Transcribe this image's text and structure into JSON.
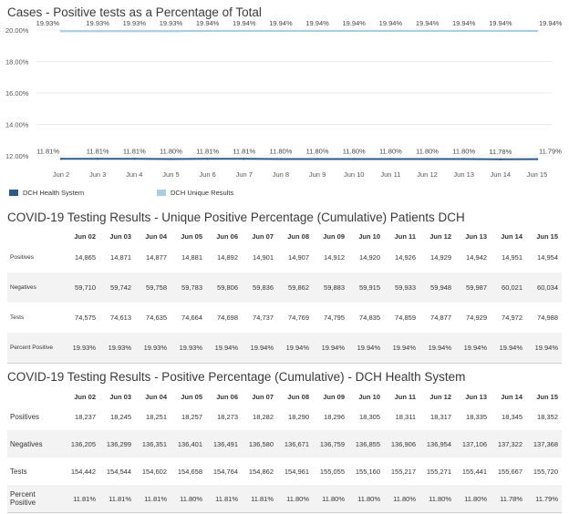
{
  "chart_title": "Cases - Positive tests as a Percentage of Total",
  "table1_title": "COVID-19 Testing Results - Unique Positive Percentage (Cumulative) Patients DCH",
  "table2_title": "COVID-19 Testing Results - Positive Percentage (Cumulative) - DCH Health System",
  "legend": [
    {
      "label": "DCH Health System",
      "color": "#2e5a87"
    },
    {
      "label": "DCH Unique Results",
      "color": "#a9cde3"
    }
  ],
  "chart_data": {
    "type": "line",
    "title": "Cases - Positive tests as a Percentage of Total",
    "x": [
      "Jun 2",
      "Jun 3",
      "Jun 4",
      "Jun 5",
      "Jun 6",
      "Jun 7",
      "Jun 8",
      "Jun 9",
      "Jun 10",
      "Jun 11",
      "Jun 12",
      "Jun 13",
      "Jun 14",
      "Jun 15"
    ],
    "y_ticks": [
      "20.00%",
      "18.00%",
      "16.00%",
      "14.00%",
      "12.00%"
    ],
    "ylim": [
      12,
      20
    ],
    "series": [
      {
        "name": "DCH Unique Results",
        "color": "#a9cde3",
        "values": [
          19.93,
          19.93,
          19.93,
          19.93,
          19.94,
          19.94,
          19.94,
          19.94,
          19.94,
          19.94,
          19.94,
          19.94,
          19.94,
          19.94
        ],
        "labels": [
          "19.93%",
          "19.93%",
          "19.93%",
          "19.93%",
          "19.94%",
          "19.94%",
          "19.94%",
          "19.94%",
          "19.94%",
          "19.94%",
          "19.94%",
          "19.94%",
          "19.94%",
          "19.94%"
        ]
      },
      {
        "name": "DCH Health System",
        "color": "#2e5a87",
        "values": [
          11.81,
          11.81,
          11.81,
          11.8,
          11.81,
          11.81,
          11.8,
          11.8,
          11.8,
          11.8,
          11.8,
          11.8,
          11.78,
          11.79
        ],
        "labels": [
          "11.81%",
          "11.81%",
          "11.81%",
          "11.80%",
          "11.81%",
          "11.81%",
          "11.80%",
          "11.80%",
          "11.80%",
          "11.80%",
          "11.80%",
          "11.80%",
          "11.78%",
          "11.79%"
        ]
      }
    ]
  },
  "table1": {
    "headers": [
      "",
      "Jun 02",
      "Jun 03",
      "Jun 04",
      "Jun 05",
      "Jun 06",
      "Jun 07",
      "Jun 08",
      "Jun 09",
      "Jun 10",
      "Jun 11",
      "Jun 12",
      "Jun 13",
      "Jun 14",
      "Jun 15"
    ],
    "rows": [
      [
        "Positives",
        "14,865",
        "14,871",
        "14,877",
        "14,881",
        "14,892",
        "14,901",
        "14,907",
        "14,912",
        "14,920",
        "14,926",
        "14,929",
        "14,942",
        "14,951",
        "14,954"
      ],
      [
        "Negatives",
        "59,710",
        "59,742",
        "59,758",
        "59,783",
        "59,806",
        "59,836",
        "59,862",
        "59,883",
        "59,915",
        "59,933",
        "59,948",
        "59,987",
        "60,021",
        "60,034"
      ],
      [
        "Tests",
        "74,575",
        "74,613",
        "74,635",
        "74,664",
        "74,698",
        "74,737",
        "74,769",
        "74,795",
        "74,835",
        "74,859",
        "74,877",
        "74,929",
        "74,972",
        "74,988"
      ],
      [
        "Percent Positive",
        "19.93%",
        "19.93%",
        "19.93%",
        "19.93%",
        "19.94%",
        "19.94%",
        "19.94%",
        "19.94%",
        "19.94%",
        "19.94%",
        "19.94%",
        "19.94%",
        "19.94%",
        "19.94%"
      ]
    ]
  },
  "table2": {
    "headers": [
      "",
      "Jun 02",
      "Jun 03",
      "Jun 04",
      "Jun 05",
      "Jun 06",
      "Jun 07",
      "Jun 08",
      "Jun 09",
      "Jun 10",
      "Jun 11",
      "Jun 12",
      "Jun 13",
      "Jun 14",
      "Jun 15"
    ],
    "rows": [
      [
        "Positives",
        "18,237",
        "18,245",
        "18,251",
        "18,257",
        "18,273",
        "18,282",
        "18,290",
        "18,296",
        "18,305",
        "18,311",
        "18,317",
        "18,335",
        "18,345",
        "18,352"
      ],
      [
        "Negatives",
        "136,205",
        "136,299",
        "136,351",
        "136,401",
        "136,491",
        "136,580",
        "136,671",
        "136,759",
        "136,855",
        "136,906",
        "136,954",
        "137,106",
        "137,322",
        "137,368"
      ],
      [
        "Tests",
        "154,442",
        "154,544",
        "154,602",
        "154,658",
        "154,764",
        "154,862",
        "154,961",
        "155,055",
        "155,160",
        "155,217",
        "155,271",
        "155,441",
        "155,667",
        "155,720"
      ],
      [
        "Percent Positive",
        "11.81%",
        "11.81%",
        "11.81%",
        "11.80%",
        "11.81%",
        "11.81%",
        "11.80%",
        "11.80%",
        "11.80%",
        "11.80%",
        "11.80%",
        "11.80%",
        "11.78%",
        "11.79%"
      ]
    ]
  }
}
